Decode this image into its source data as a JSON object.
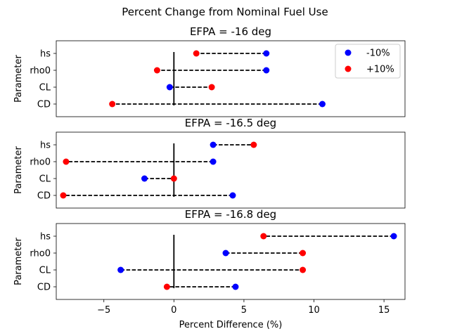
{
  "figure": {
    "suptitle": "Percent Change from Nominal Fuel Use",
    "xlabel": "Percent Difference (%)"
  },
  "chart_data": [
    {
      "type": "scatter",
      "title": "EFPA = -16 deg",
      "ylabel": "Parameter",
      "xlabel": "",
      "categories": [
        "hs",
        "rho0",
        "CL",
        "CD"
      ],
      "xlim": [
        -8.4,
        16.5
      ],
      "xticks": [],
      "grid": false,
      "legend_position": "top-right",
      "series": [
        {
          "name": "-10%",
          "color": "#0000ff",
          "values": [
            6.6,
            6.6,
            -0.3,
            10.6
          ]
        },
        {
          "name": "+10%",
          "color": "#ff0000",
          "values": [
            1.6,
            -1.2,
            2.7,
            -4.4
          ]
        }
      ],
      "reference_line_x": 0
    },
    {
      "type": "scatter",
      "title": "EFPA = -16.5 deg",
      "ylabel": "Parameter",
      "xlabel": "",
      "categories": [
        "hs",
        "rho0",
        "CL",
        "CD"
      ],
      "xlim": [
        -8.4,
        16.5
      ],
      "xticks": [],
      "grid": false,
      "series": [
        {
          "name": "",
          "color": "#0000ff",
          "values": [
            2.8,
            2.8,
            -2.1,
            4.2
          ]
        },
        {
          "name": "",
          "color": "#ff0000",
          "values": [
            5.7,
            -7.7,
            0.0,
            -7.9
          ]
        }
      ],
      "reference_line_x": 0
    },
    {
      "type": "scatter",
      "title": "EFPA = -16.8 deg",
      "ylabel": "Parameter",
      "xlabel": "Percent Difference (%)",
      "categories": [
        "hs",
        "rho0",
        "CL",
        "CD"
      ],
      "xlim": [
        -8.4,
        16.5
      ],
      "xticks": [
        -5,
        0,
        5,
        10,
        15
      ],
      "xticklabels": [
        "−5",
        "0",
        "5",
        "10",
        "15"
      ],
      "grid": false,
      "series": [
        {
          "name": "",
          "color": "#0000ff",
          "values": [
            15.7,
            3.7,
            -3.8,
            4.4
          ]
        },
        {
          "name": "",
          "color": "#ff0000",
          "values": [
            6.4,
            9.2,
            9.2,
            -0.5
          ]
        }
      ],
      "reference_line_x": 0
    }
  ]
}
